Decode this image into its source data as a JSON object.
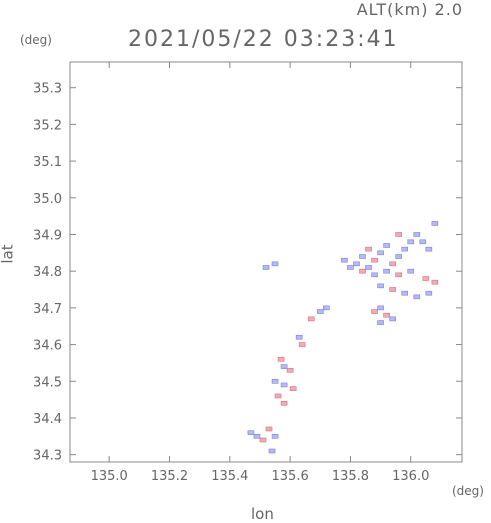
{
  "header": {
    "alt_label": "ALT(km) 2.0",
    "timestamp": "2021/05/22 03:23:41",
    "y_unit": "(deg)",
    "x_unit": "(deg)"
  },
  "chart_data": {
    "type": "scatter",
    "title": "2021/05/22 03:23:41",
    "xlabel": "lon",
    "ylabel": "lat",
    "xlim": [
      134.87,
      136.17
    ],
    "ylim": [
      34.28,
      35.37
    ],
    "x_ticks": [
      "135.0",
      "135.2",
      "135.4",
      "135.6",
      "135.8",
      "136.0"
    ],
    "x_tick_values": [
      135.0,
      135.2,
      135.4,
      135.6,
      135.8,
      136.0
    ],
    "y_ticks": [
      "34.3",
      "34.4",
      "34.5",
      "34.6",
      "34.7",
      "34.8",
      "34.9",
      "35.0",
      "35.1",
      "35.2",
      "35.3"
    ],
    "y_tick_values": [
      34.3,
      34.4,
      34.5,
      34.6,
      34.7,
      34.8,
      34.9,
      35.0,
      35.1,
      35.2,
      35.3
    ],
    "grid": false,
    "colors": {
      "positive": "#e06a7a",
      "negative": "#7a7fe6",
      "axis": "#888888"
    },
    "points": [
      {
        "x": 135.82,
        "y": 34.82,
        "v": -1
      },
      {
        "x": 135.84,
        "y": 34.84,
        "v": -1
      },
      {
        "x": 135.86,
        "y": 34.81,
        "v": -1
      },
      {
        "x": 135.88,
        "y": 34.83,
        "v": 1
      },
      {
        "x": 135.9,
        "y": 34.85,
        "v": -1
      },
      {
        "x": 135.92,
        "y": 34.87,
        "v": -1
      },
      {
        "x": 135.94,
        "y": 34.82,
        "v": 1
      },
      {
        "x": 135.96,
        "y": 34.84,
        "v": -1
      },
      {
        "x": 135.98,
        "y": 34.86,
        "v": -1
      },
      {
        "x": 136.0,
        "y": 34.88,
        "v": -1
      },
      {
        "x": 136.02,
        "y": 34.9,
        "v": -1
      },
      {
        "x": 136.04,
        "y": 34.88,
        "v": -1
      },
      {
        "x": 136.06,
        "y": 34.86,
        "v": -1
      },
      {
        "x": 136.08,
        "y": 34.93,
        "v": -1
      },
      {
        "x": 136.05,
        "y": 34.78,
        "v": 1
      },
      {
        "x": 136.0,
        "y": 34.8,
        "v": -1
      },
      {
        "x": 135.96,
        "y": 34.79,
        "v": 1
      },
      {
        "x": 135.92,
        "y": 34.8,
        "v": -1
      },
      {
        "x": 135.88,
        "y": 34.79,
        "v": -1
      },
      {
        "x": 135.84,
        "y": 34.8,
        "v": 1
      },
      {
        "x": 135.8,
        "y": 34.81,
        "v": -1
      },
      {
        "x": 135.78,
        "y": 34.83,
        "v": -1
      },
      {
        "x": 135.9,
        "y": 34.76,
        "v": -1
      },
      {
        "x": 135.94,
        "y": 34.75,
        "v": 1
      },
      {
        "x": 135.98,
        "y": 34.74,
        "v": -1
      },
      {
        "x": 136.02,
        "y": 34.73,
        "v": -1
      },
      {
        "x": 136.06,
        "y": 34.74,
        "v": -1
      },
      {
        "x": 135.86,
        "y": 34.86,
        "v": 1
      },
      {
        "x": 135.96,
        "y": 34.9,
        "v": 1
      },
      {
        "x": 136.08,
        "y": 34.77,
        "v": 1
      },
      {
        "x": 135.9,
        "y": 34.7,
        "v": -1
      },
      {
        "x": 135.92,
        "y": 34.68,
        "v": 1
      },
      {
        "x": 135.94,
        "y": 34.67,
        "v": -1
      },
      {
        "x": 135.88,
        "y": 34.69,
        "v": 1
      },
      {
        "x": 135.9,
        "y": 34.66,
        "v": -1
      },
      {
        "x": 135.52,
        "y": 34.81,
        "v": -1
      },
      {
        "x": 135.55,
        "y": 34.82,
        "v": -1
      },
      {
        "x": 135.7,
        "y": 34.69,
        "v": -1
      },
      {
        "x": 135.72,
        "y": 34.7,
        "v": -1
      },
      {
        "x": 135.67,
        "y": 34.67,
        "v": 1
      },
      {
        "x": 135.63,
        "y": 34.62,
        "v": -1
      },
      {
        "x": 135.64,
        "y": 34.6,
        "v": 1
      },
      {
        "x": 135.57,
        "y": 34.56,
        "v": 1
      },
      {
        "x": 135.58,
        "y": 34.54,
        "v": -1
      },
      {
        "x": 135.6,
        "y": 34.53,
        "v": 1
      },
      {
        "x": 135.55,
        "y": 34.5,
        "v": -1
      },
      {
        "x": 135.58,
        "y": 34.49,
        "v": -1
      },
      {
        "x": 135.61,
        "y": 34.48,
        "v": 1
      },
      {
        "x": 135.56,
        "y": 34.46,
        "v": 1
      },
      {
        "x": 135.58,
        "y": 34.44,
        "v": 1
      },
      {
        "x": 135.53,
        "y": 34.37,
        "v": 1
      },
      {
        "x": 135.55,
        "y": 34.35,
        "v": -1
      },
      {
        "x": 135.51,
        "y": 34.34,
        "v": 1
      },
      {
        "x": 135.54,
        "y": 34.31,
        "v": -1
      },
      {
        "x": 135.47,
        "y": 34.36,
        "v": -1
      },
      {
        "x": 135.49,
        "y": 34.35,
        "v": -1
      }
    ]
  }
}
